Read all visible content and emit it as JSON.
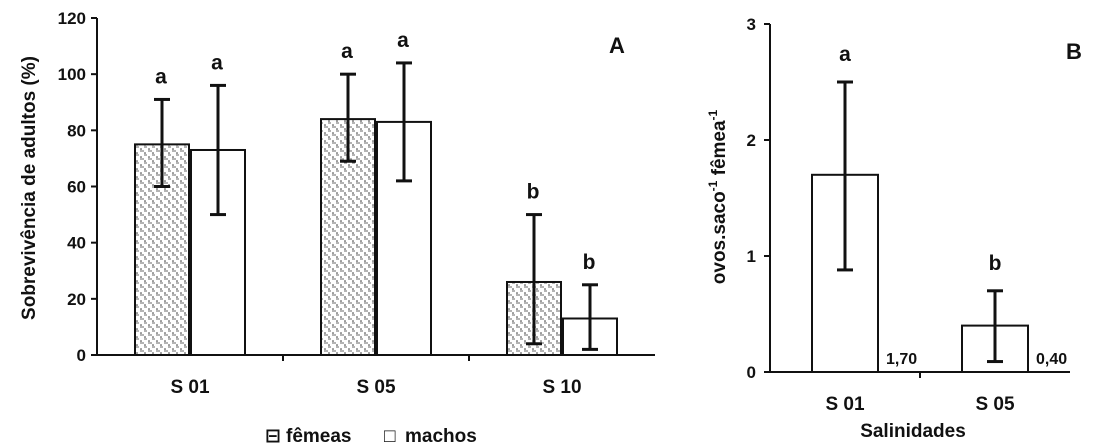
{
  "chart_data": [
    {
      "type": "bar",
      "panel_label": "A",
      "ylabel": "Sobrevivência de adultos (%)",
      "xlabel": "",
      "ylim": [
        0,
        120
      ],
      "yticks": [
        "0",
        "20",
        "40",
        "60",
        "80",
        "100",
        "120"
      ],
      "categories": [
        "S 01",
        "S 05",
        "S 10"
      ],
      "series": [
        {
          "name": "fêmeas",
          "values": [
            75,
            84,
            26
          ],
          "err_low": [
            60,
            69,
            4
          ],
          "err_high": [
            91,
            100,
            50
          ],
          "letters": [
            "a",
            "a",
            "b"
          ],
          "pattern": "dotted-hatched"
        },
        {
          "name": "machos",
          "values": [
            73,
            83,
            13
          ],
          "err_low": [
            50,
            62,
            2
          ],
          "err_high": [
            96,
            104,
            25
          ],
          "letters": [
            "a",
            "a",
            "b"
          ],
          "pattern": "blank"
        }
      ],
      "legend": {
        "placement": "bottom",
        "items": [
          "fêmeas",
          "machos"
        ],
        "markers": [
          "⊟",
          "□"
        ]
      },
      "grid": false
    },
    {
      "type": "bar",
      "panel_label": "B",
      "ylabel_parts": [
        "ovos.saco",
        "-1",
        " fêmea",
        "-1"
      ],
      "xlabel": "Salinidades",
      "ylim": [
        0,
        3
      ],
      "yticks": [
        "0",
        "1",
        "2",
        "3"
      ],
      "categories": [
        "S 01",
        "S 05"
      ],
      "values": [
        1.7,
        0.4
      ],
      "value_labels": [
        "1,70",
        "0,40"
      ],
      "err_low": [
        0.88,
        0.09
      ],
      "err_high": [
        2.5,
        0.7
      ],
      "letters": [
        "a",
        "b"
      ],
      "grid": false
    }
  ],
  "colors": {
    "axis": "#111111",
    "bar_fill": "#ffffff",
    "pattern": "#222222"
  }
}
